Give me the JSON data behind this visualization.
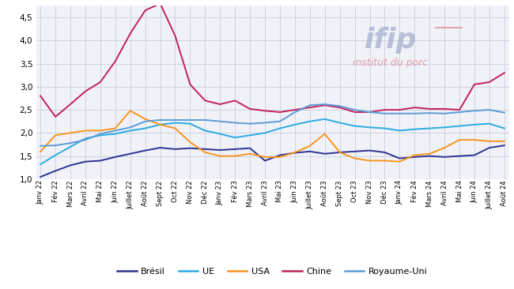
{
  "x_labels": [
    "Janv 22",
    "Fév 22",
    "Mars 22",
    "Avril 22",
    "Mai 22",
    "Juin 22",
    "Juillet 22",
    "Août 22",
    "Sept 22",
    "Oct 22",
    "Nov 22",
    "Déc 22",
    "Janv 23",
    "Fév 23",
    "Mars 23",
    "Avril 23",
    "Mai 23",
    "Juin 23",
    "Juillet 23",
    "Août 23",
    "Sept 23",
    "Oct 23",
    "Nov 23",
    "Déc 23",
    "Janv 24",
    "Fév 24",
    "Mars 24",
    "Avril 24",
    "Mai 24",
    "Juin 24",
    "Juillet 24",
    "Août 24"
  ],
  "bresil": [
    1.05,
    1.18,
    1.3,
    1.38,
    1.4,
    1.48,
    1.55,
    1.62,
    1.68,
    1.65,
    1.67,
    1.65,
    1.63,
    1.65,
    1.67,
    1.4,
    1.52,
    1.57,
    1.6,
    1.55,
    1.58,
    1.6,
    1.62,
    1.58,
    1.45,
    1.48,
    1.5,
    1.48,
    1.5,
    1.52,
    1.68,
    1.73
  ],
  "UE": [
    1.32,
    1.52,
    1.7,
    1.88,
    1.95,
    1.98,
    2.05,
    2.1,
    2.18,
    2.22,
    2.2,
    2.05,
    1.98,
    1.9,
    1.95,
    2.0,
    2.1,
    2.18,
    2.25,
    2.3,
    2.22,
    2.15,
    2.12,
    2.1,
    2.05,
    2.08,
    2.1,
    2.12,
    2.15,
    2.18,
    2.2,
    2.1
  ],
  "USA": [
    1.6,
    1.95,
    2.0,
    2.05,
    2.05,
    2.1,
    2.48,
    2.3,
    2.18,
    2.1,
    1.8,
    1.58,
    1.5,
    1.5,
    1.55,
    1.48,
    1.48,
    1.58,
    1.72,
    1.98,
    1.58,
    1.45,
    1.4,
    1.4,
    1.38,
    1.52,
    1.55,
    1.68,
    1.85,
    1.85,
    1.82,
    1.82
  ],
  "Chine": [
    2.8,
    2.35,
    2.62,
    2.9,
    3.1,
    3.55,
    4.15,
    4.65,
    4.8,
    4.1,
    3.05,
    2.7,
    2.62,
    2.7,
    2.52,
    2.48,
    2.45,
    2.5,
    2.55,
    2.6,
    2.55,
    2.45,
    2.45,
    2.5,
    2.5,
    2.55,
    2.52,
    2.52,
    2.5,
    3.05,
    3.1,
    3.3
  ],
  "RoyaumeUni": [
    1.72,
    1.73,
    1.78,
    1.85,
    1.98,
    2.05,
    2.12,
    2.25,
    2.28,
    2.28,
    2.28,
    2.28,
    2.25,
    2.22,
    2.2,
    2.22,
    2.25,
    2.45,
    2.6,
    2.62,
    2.58,
    2.5,
    2.45,
    2.42,
    2.42,
    2.42,
    2.43,
    2.42,
    2.45,
    2.48,
    2.5,
    2.44
  ],
  "colors": {
    "bresil": "#2e3191",
    "UE": "#29abe2",
    "USA": "#f7941d",
    "Chine": "#c1215c",
    "RoyaumeUni": "#5b9bd5"
  },
  "legend_labels": [
    "Brésil",
    "UE",
    "USA",
    "Chine",
    "Royaume-Uni"
  ],
  "ylim": [
    1.0,
    4.75
  ],
  "yticks": [
    1.0,
    1.5,
    2.0,
    2.5,
    3.0,
    3.5,
    4.0,
    4.5
  ],
  "bg_color": "#f0f2f8",
  "grid_color": "#c8cde0",
  "watermark_ifip_color": "#aab4d0",
  "watermark_sub_color": "#e08090",
  "fig_width": 6.5,
  "fig_height": 3.66,
  "dpi": 100
}
